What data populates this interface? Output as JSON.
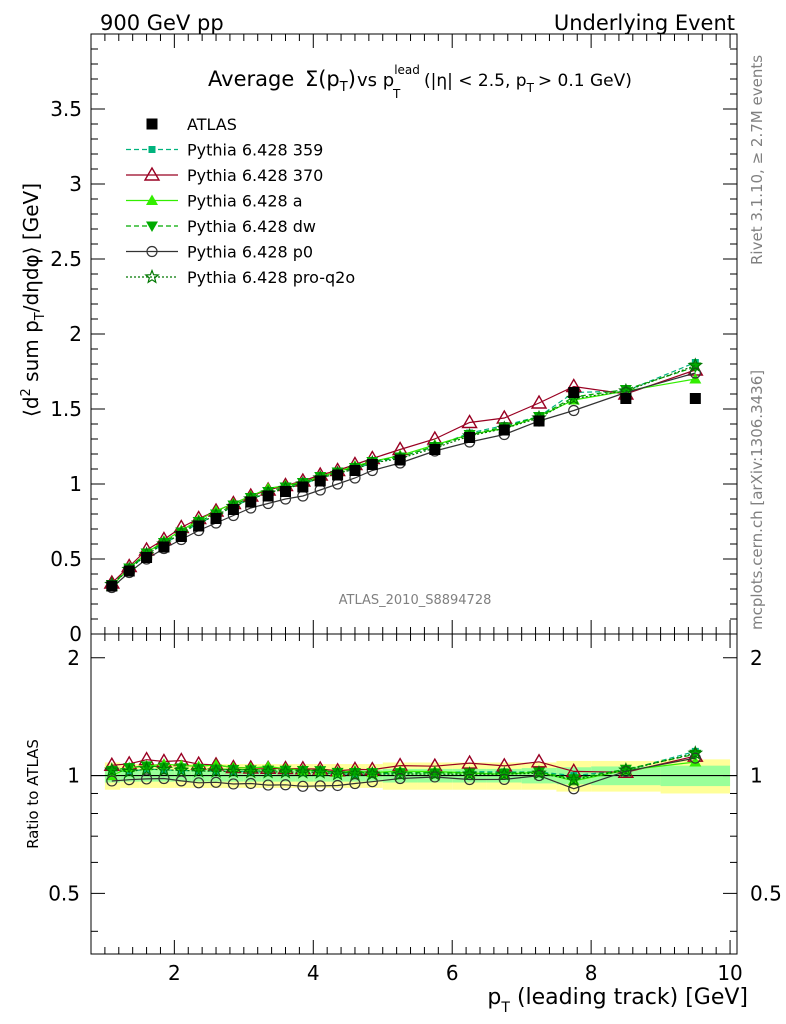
{
  "header": {
    "left": "900 GeV pp",
    "right": "Underlying Event"
  },
  "side": {
    "rivet": "Rivet 3.1.10, ≥ 2.7M events",
    "mcplots": "mcplots.cern.ch [arXiv:1306.3436]"
  },
  "analysis_id": "ATLAS_2010_S8894728",
  "title": {
    "main": "Average",
    "sigma": "Σ(p",
    "sigma_sub": "T",
    "sigma_close": ")",
    "vs": "vs p",
    "vs_sup": "lead",
    "vs_sub": "T",
    "cuts": "(|η| < 2.5, p",
    "cuts_sub": "T",
    "cuts_end": "> 0.1 GeV)"
  },
  "axes": {
    "ylabel_main": "⟨d² sum p_T/dηdφ⟩ [GeV]",
    "ylabel_ratio": "Ratio to ATLAS",
    "xlabel": "p_T (leading track) [GeV]",
    "xticks": [
      "2",
      "4",
      "6",
      "8",
      "10"
    ],
    "yticks_main": [
      "0",
      "0.5",
      "1",
      "1.5",
      "2",
      "2.5",
      "3",
      "3.5"
    ],
    "yticks_ratio": [
      "0.5",
      "1",
      "2"
    ]
  },
  "colors": {
    "atlas": "#000000",
    "p359": "#00b37d",
    "p370": "#990022",
    "pa": "#33ee00",
    "pdw": "#00aa00",
    "pp0": "#333333",
    "pq2o": "#007700",
    "band_outer": "#ffff99",
    "band_inner": "#99ff99"
  },
  "chart_data": {
    "type": "scatter",
    "x": [
      1.1,
      1.35,
      1.6,
      1.85,
      2.1,
      2.35,
      2.6,
      2.85,
      3.1,
      3.35,
      3.6,
      3.85,
      4.1,
      4.35,
      4.6,
      4.85,
      5.25,
      5.75,
      6.25,
      6.75,
      7.25,
      7.75,
      8.5,
      9.5
    ],
    "xlim": [
      0.8,
      10.1
    ],
    "ylim_main": [
      0,
      4.0
    ],
    "ylim_ratio": [
      0.35,
      2.3
    ],
    "ratio_log": true,
    "series": [
      {
        "name": "ATLAS",
        "key": "atlas",
        "marker": "square",
        "line": "none",
        "values": [
          0.32,
          0.42,
          0.51,
          0.58,
          0.65,
          0.72,
          0.77,
          0.83,
          0.88,
          0.92,
          0.95,
          0.98,
          1.02,
          1.06,
          1.09,
          1.13,
          1.16,
          1.23,
          1.31,
          1.36,
          1.42,
          1.61,
          1.57,
          1.57
        ]
      },
      {
        "name": "Pythia 6.428 359",
        "key": "p359",
        "marker": "smallsquare",
        "line": "dashed",
        "values": [
          0.33,
          0.43,
          0.53,
          0.6,
          0.67,
          0.74,
          0.79,
          0.85,
          0.9,
          0.94,
          0.97,
          1.0,
          1.04,
          1.07,
          1.1,
          1.14,
          1.18,
          1.25,
          1.34,
          1.39,
          1.45,
          1.61,
          1.62,
          1.81
        ]
      },
      {
        "name": "Pythia 6.428 370",
        "key": "p370",
        "marker": "opentriangle",
        "line": "solid",
        "values": [
          0.34,
          0.45,
          0.56,
          0.63,
          0.71,
          0.77,
          0.82,
          0.87,
          0.92,
          0.96,
          0.99,
          1.02,
          1.06,
          1.09,
          1.13,
          1.17,
          1.23,
          1.3,
          1.41,
          1.44,
          1.54,
          1.65,
          1.6,
          1.76
        ]
      },
      {
        "name": "Pythia 6.428 a",
        "key": "pa",
        "marker": "triangle",
        "line": "solid",
        "values": [
          0.32,
          0.44,
          0.54,
          0.62,
          0.69,
          0.76,
          0.82,
          0.87,
          0.92,
          0.97,
          0.99,
          1.01,
          1.05,
          1.08,
          1.12,
          1.15,
          1.19,
          1.26,
          1.33,
          1.37,
          1.45,
          1.56,
          1.62,
          1.7
        ]
      },
      {
        "name": "Pythia 6.428 dw",
        "key": "pdw",
        "marker": "invtriangle",
        "line": "dashed",
        "values": [
          0.33,
          0.44,
          0.54,
          0.61,
          0.68,
          0.75,
          0.8,
          0.86,
          0.91,
          0.95,
          0.98,
          1.01,
          1.05,
          1.08,
          1.11,
          1.15,
          1.18,
          1.25,
          1.33,
          1.38,
          1.45,
          1.58,
          1.63,
          1.78
        ]
      },
      {
        "name": "Pythia 6.428 p0",
        "key": "pp0",
        "marker": "opencircle",
        "line": "solid",
        "values": [
          0.31,
          0.41,
          0.5,
          0.57,
          0.63,
          0.69,
          0.74,
          0.79,
          0.84,
          0.87,
          0.9,
          0.92,
          0.96,
          1.0,
          1.04,
          1.09,
          1.14,
          1.22,
          1.28,
          1.33,
          1.42,
          1.49,
          1.61,
          1.74
        ]
      },
      {
        "name": "Pythia 6.428 pro-q2o",
        "key": "pq2o",
        "marker": "star",
        "line": "dotted",
        "values": [
          0.33,
          0.43,
          0.53,
          0.6,
          0.67,
          0.74,
          0.79,
          0.85,
          0.9,
          0.94,
          0.97,
          1.0,
          1.04,
          1.07,
          1.1,
          1.14,
          1.17,
          1.24,
          1.32,
          1.37,
          1.44,
          1.57,
          1.62,
          1.79
        ]
      }
    ],
    "ratio_band": {
      "x": [
        1.0,
        1.22,
        1.5,
        1.75,
        2.0,
        2.25,
        2.5,
        2.75,
        3.0,
        3.25,
        3.5,
        3.75,
        4.0,
        4.25,
        4.5,
        4.75,
        5.0,
        5.5,
        6.0,
        6.5,
        7.0,
        7.5,
        8.0,
        9.0,
        10.0
      ],
      "outer": [
        0.08,
        0.07,
        0.07,
        0.07,
        0.07,
        0.07,
        0.07,
        0.07,
        0.07,
        0.07,
        0.07,
        0.07,
        0.07,
        0.07,
        0.07,
        0.07,
        0.08,
        0.08,
        0.08,
        0.08,
        0.08,
        0.09,
        0.09,
        0.1
      ],
      "inner": [
        0.04,
        0.035,
        0.035,
        0.035,
        0.035,
        0.035,
        0.035,
        0.035,
        0.035,
        0.035,
        0.035,
        0.035,
        0.035,
        0.035,
        0.035,
        0.035,
        0.04,
        0.04,
        0.04,
        0.04,
        0.045,
        0.05,
        0.055,
        0.06
      ]
    }
  }
}
